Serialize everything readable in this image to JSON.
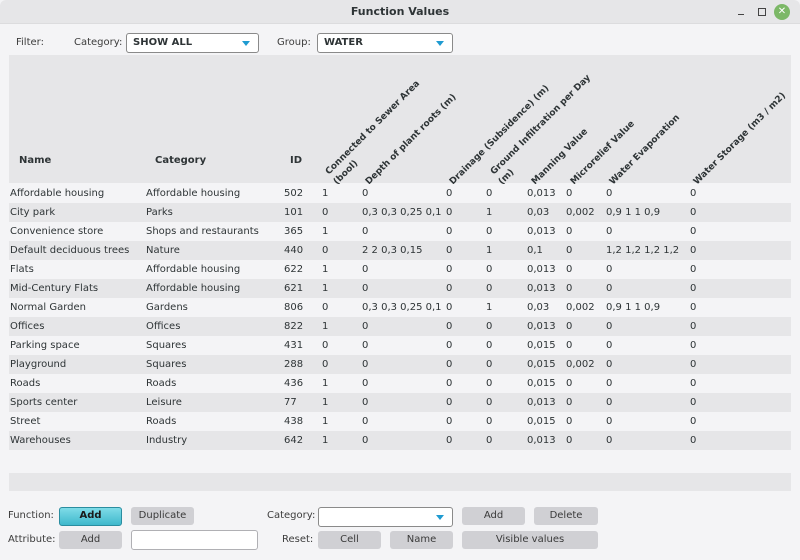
{
  "window": {
    "title": "Function Values",
    "controls": [
      "minimize",
      "maximize",
      "close"
    ]
  },
  "filter": {
    "label": "Filter:",
    "category_label": "Category:",
    "category_value": "SHOW ALL",
    "group_label": "Group:",
    "group_value": "WATER"
  },
  "table": {
    "columns": [
      "Name",
      "Category",
      "ID",
      "Connected to Sewer Area (bool)",
      "Depth of plant roots  (m)",
      "Drainage (Subsidence)  (m)",
      "Ground Infiltration per Day (m)",
      "Manning Value",
      "Microrelief Value",
      "Water Evaporation",
      "Water Storage  (m3 / m2)"
    ],
    "rows": [
      [
        "Affordable housing",
        "Affordable housing",
        "502",
        "1",
        "0",
        "0",
        "0",
        "0,013",
        "0",
        "0",
        "0"
      ],
      [
        "City park",
        "Parks",
        "101",
        "0",
        "0,3 0,3 0,25 0,1",
        "0",
        "1",
        "0,03",
        "0,002",
        "0,9 1 1 0,9",
        "0"
      ],
      [
        "Convenience store",
        "Shops and restaurants",
        "365",
        "1",
        "0",
        "0",
        "0",
        "0,013",
        "0",
        "0",
        "0"
      ],
      [
        "Default deciduous trees",
        "Nature",
        "440",
        "0",
        "2 2 0,3 0,15",
        "0",
        "1",
        "0,1",
        "0",
        "1,2 1,2 1,2 1,2",
        "0"
      ],
      [
        "Flats",
        "Affordable housing",
        "622",
        "1",
        "0",
        "0",
        "0",
        "0,013",
        "0",
        "0",
        "0"
      ],
      [
        "Mid-Century Flats",
        "Affordable housing",
        "621",
        "1",
        "0",
        "0",
        "0",
        "0,013",
        "0",
        "0",
        "0"
      ],
      [
        "Normal Garden",
        "Gardens",
        "806",
        "0",
        "0,3 0,3 0,25 0,1",
        "0",
        "1",
        "0,03",
        "0,002",
        "0,9 1 1 0,9",
        "0"
      ],
      [
        "Offices",
        "Offices",
        "822",
        "1",
        "0",
        "0",
        "0",
        "0,013",
        "0",
        "0",
        "0"
      ],
      [
        "Parking space",
        "Squares",
        "431",
        "0",
        "0",
        "0",
        "0",
        "0,015",
        "0",
        "0",
        "0"
      ],
      [
        "Playground",
        "Squares",
        "288",
        "0",
        "0",
        "0",
        "0",
        "0,015",
        "0,002",
        "0",
        "0"
      ],
      [
        "Roads",
        "Roads",
        "436",
        "1",
        "0",
        "0",
        "0",
        "0,015",
        "0",
        "0",
        "0"
      ],
      [
        "Sports center",
        "Leisure",
        "77",
        "1",
        "0",
        "0",
        "0",
        "0,013",
        "0",
        "0",
        "0"
      ],
      [
        "Street",
        "Roads",
        "438",
        "1",
        "0",
        "0",
        "0",
        "0,015",
        "0",
        "0",
        "0"
      ],
      [
        "Warehouses",
        "Industry",
        "642",
        "1",
        "0",
        "0",
        "0",
        "0,013",
        "0",
        "0",
        "0"
      ]
    ]
  },
  "bottom": {
    "function_label": "Function:",
    "function_add": "Add",
    "function_duplicate": "Duplicate",
    "attribute_label": "Attribute:",
    "attribute_add": "Add",
    "attribute_input_value": "",
    "category_label": "Category:",
    "category_value": "",
    "category_add": "Add",
    "category_delete": "Delete",
    "reset_label": "Reset:",
    "reset_cell": "Cell",
    "reset_name": "Name",
    "reset_visible": "Visible values"
  },
  "colors": {
    "accent": "#3fb8cc",
    "combo_arrow": "#1f9bd1",
    "close_button": "#7cb867",
    "row_alt": "#e6e6e8",
    "row_base": "#f4f4f6"
  }
}
